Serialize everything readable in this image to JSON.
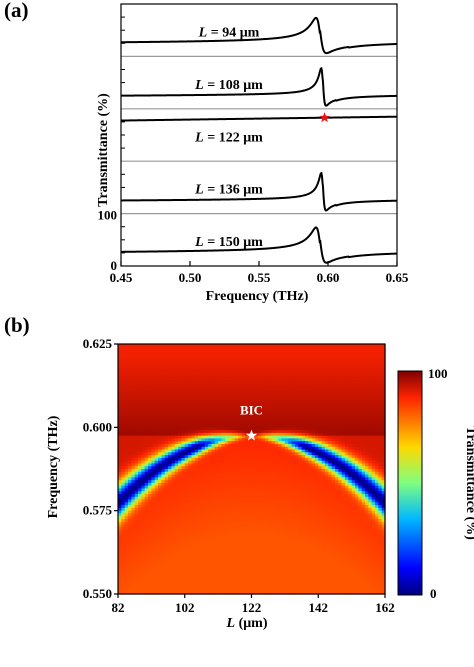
{
  "chart_data": [
    {
      "panel_label": "(a)",
      "type": "line",
      "xlabel": "Frequency (THz)",
      "ylabel": "Transmittance (%)",
      "xlim": [
        0.45,
        0.65
      ],
      "xticks": [
        "0.45",
        "0.50",
        "0.55",
        "0.60",
        "0.65"
      ],
      "yticks_shown": [
        "0",
        "100"
      ],
      "grid": false,
      "series": [
        {
          "name": "L = 94 μm",
          "L_prefix": "L",
          "L_value": "= 94 μm",
          "resonance_THz": 0.594,
          "dip_width_THz": 0.0035,
          "baseline_pct": 78,
          "asymmetry": -1.3
        },
        {
          "name": "L = 108 μm",
          "L_prefix": "L",
          "L_value": "= 108 μm",
          "resonance_THz": 0.5962,
          "dip_width_THz": 0.0016,
          "baseline_pct": 82,
          "asymmetry": -1.4
        },
        {
          "name": "L = 122 μm",
          "L_prefix": "L",
          "L_value": "= 122 μm",
          "resonance_THz": 0.5975,
          "dip_width_THz": 0.0,
          "baseline_pct": 88,
          "asymmetry": 0
        },
        {
          "name": "L = 136 μm",
          "L_prefix": "L",
          "L_value": "= 136 μm",
          "resonance_THz": 0.5962,
          "dip_width_THz": 0.0016,
          "baseline_pct": 82,
          "asymmetry": -1.4
        },
        {
          "name": "L = 150 μm",
          "L_prefix": "L",
          "L_value": "= 150 μm",
          "resonance_THz": 0.594,
          "dip_width_THz": 0.0035,
          "baseline_pct": 78,
          "asymmetry": -1.3
        }
      ],
      "marker": {
        "type": "star",
        "color": "#e8141c",
        "x": 0.5975,
        "series_index": 2
      }
    },
    {
      "panel_label": "(b)",
      "type": "heatmap",
      "xlabel_italic": "L",
      "xlabel_rest": " (μm)",
      "ylabel": "Frequency (THz)",
      "xlim": [
        82,
        162
      ],
      "ylim": [
        0.55,
        0.625
      ],
      "xticks": [
        "82",
        "102",
        "122",
        "142",
        "162"
      ],
      "yticks": [
        "0.550",
        "0.575",
        "0.600",
        "0.625"
      ],
      "colorbar": {
        "label": "Transmittance (%)",
        "min_label": "0",
        "max_label": "100",
        "min": 0,
        "max": 100
      },
      "annotation": {
        "text": "BIC",
        "L": 122,
        "freq": 0.5975,
        "marker": "star",
        "color": "#ffffff"
      }
    }
  ]
}
